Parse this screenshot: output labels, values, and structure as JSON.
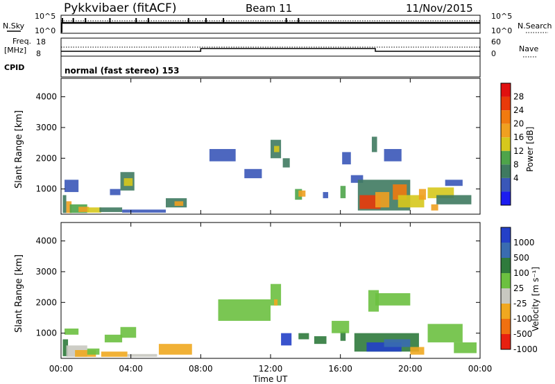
{
  "header": {
    "station": "Pykkvibaer (fitACF)",
    "beam": "Beam 11",
    "date": "11/Nov/2015"
  },
  "noise_panel": {
    "left_label": "N.Sky",
    "right_label": "N.Search",
    "left_ticks": [
      "10^5",
      "10^0"
    ],
    "right_ticks": [
      "10^5",
      "10^0"
    ]
  },
  "freq_panel": {
    "left_label_1": "Freq.",
    "left_label_2": "[MHz]",
    "left_ticks": [
      "18",
      "8"
    ],
    "right_label": "Nave",
    "right_ticks": [
      "60",
      "0"
    ]
  },
  "cpid": {
    "label": "CPID",
    "text": "normal (fast stereo) 153"
  },
  "axes": {
    "x_label": "Time UT",
    "x_ticks": [
      "00:00",
      "04:00",
      "08:00",
      "12:00",
      "16:00",
      "20:00",
      "00:00"
    ],
    "y_label": "Slant Range [km]",
    "y_ticks": [
      "1000",
      "2000",
      "3000",
      "4000"
    ]
  },
  "power_scale": {
    "label": "Power [dB]",
    "ticks": [
      "4",
      "8",
      "12",
      "16",
      "20",
      "24",
      "28"
    ],
    "colors": [
      "#1c1cf0",
      "#3a57b8",
      "#3f7a60",
      "#4ea44a",
      "#d6c81c",
      "#f0a020",
      "#f07a10",
      "#e83a0a",
      "#e01010"
    ]
  },
  "velocity_scale": {
    "label": "Velocity [m s⁻¹]",
    "ticks": [
      "1000",
      "500",
      "100",
      "25",
      "-25",
      "-100",
      "-500",
      "-1000"
    ],
    "colors": [
      "#2440c8",
      "#3a6cb0",
      "#2f7a3c",
      "#6cc040",
      "#c8c8c0",
      "#f0a820",
      "#f07010",
      "#e82010"
    ]
  },
  "chart_data": [
    {
      "type": "heatmap",
      "quantity": "Power",
      "x": [
        0,
        24
      ],
      "ylim": [
        180,
        4600
      ],
      "cells": [
        [
          0.1,
          0.3,
          220,
          800,
          8
        ],
        [
          0.3,
          0.6,
          220,
          600,
          20
        ],
        [
          0.5,
          1.5,
          220,
          500,
          12
        ],
        [
          1.0,
          1.6,
          250,
          420,
          22
        ],
        [
          1.5,
          2.3,
          230,
          400,
          16
        ],
        [
          2.2,
          3.5,
          250,
          400,
          8
        ],
        [
          3.5,
          6.0,
          230,
          330,
          4
        ],
        [
          6.0,
          7.2,
          400,
          700,
          8
        ],
        [
          6.5,
          7.0,
          450,
          600,
          20
        ],
        [
          3.4,
          4.2,
          950,
          1550,
          8
        ],
        [
          3.6,
          4.1,
          1100,
          1350,
          16
        ],
        [
          0.2,
          1.0,
          900,
          1300,
          4
        ],
        [
          2.8,
          3.4,
          800,
          1000,
          4
        ],
        [
          8.5,
          10.0,
          1900,
          2300,
          4
        ],
        [
          10.5,
          11.5,
          1350,
          1650,
          4
        ],
        [
          12.0,
          12.6,
          2000,
          2600,
          8
        ],
        [
          12.2,
          12.5,
          2200,
          2400,
          16
        ],
        [
          12.7,
          13.1,
          1700,
          2000,
          8
        ],
        [
          13.4,
          13.8,
          650,
          1000,
          12
        ],
        [
          13.6,
          14.0,
          750,
          950,
          20
        ],
        [
          15.0,
          15.3,
          700,
          900,
          4
        ],
        [
          16.0,
          16.3,
          700,
          1100,
          12
        ],
        [
          16.6,
          17.3,
          1200,
          1450,
          4
        ],
        [
          17.0,
          20.0,
          300,
          1300,
          8
        ],
        [
          17.1,
          18.3,
          350,
          800,
          28
        ],
        [
          18.0,
          18.8,
          400,
          900,
          20
        ],
        [
          19.0,
          19.8,
          650,
          1150,
          24
        ],
        [
          19.3,
          20.8,
          400,
          800,
          16
        ],
        [
          20.5,
          20.9,
          650,
          1000,
          20
        ],
        [
          21.0,
          22.5,
          700,
          1050,
          16
        ],
        [
          21.5,
          23.5,
          500,
          800,
          8
        ],
        [
          22.0,
          23.0,
          1100,
          1300,
          4
        ],
        [
          21.2,
          21.6,
          300,
          500,
          20
        ],
        [
          17.8,
          18.1,
          2200,
          2700,
          8
        ],
        [
          18.5,
          19.5,
          1900,
          2300,
          4
        ],
        [
          16.1,
          16.6,
          1800,
          2200,
          4
        ]
      ]
    },
    {
      "type": "heatmap",
      "quantity": "Velocity",
      "x": [
        0,
        24
      ],
      "ylim": [
        180,
        4600
      ],
      "cells": [
        [
          0.1,
          0.4,
          250,
          800,
          100
        ],
        [
          0.3,
          1.5,
          230,
          600,
          -25
        ],
        [
          0.8,
          2.0,
          230,
          450,
          -100
        ],
        [
          1.5,
          2.2,
          300,
          500,
          25
        ],
        [
          2.3,
          3.8,
          230,
          400,
          -100
        ],
        [
          3.8,
          5.5,
          230,
          320,
          -25
        ],
        [
          5.6,
          7.5,
          300,
          650,
          -100
        ],
        [
          3.4,
          4.3,
          850,
          1200,
          25
        ],
        [
          2.5,
          3.5,
          700,
          950,
          25
        ],
        [
          0.2,
          1.0,
          950,
          1150,
          25
        ],
        [
          9.0,
          12.0,
          1400,
          2100,
          25
        ],
        [
          12.0,
          12.6,
          1900,
          2600,
          25
        ],
        [
          12.2,
          12.4,
          1900,
          2100,
          -100
        ],
        [
          12.6,
          13.2,
          600,
          1000,
          1000
        ],
        [
          13.6,
          14.2,
          800,
          1000,
          100
        ],
        [
          14.5,
          15.2,
          650,
          900,
          100
        ],
        [
          16.0,
          16.3,
          750,
          1050,
          100
        ],
        [
          15.5,
          16.5,
          1000,
          1400,
          25
        ],
        [
          16.8,
          20.5,
          400,
          1000,
          100
        ],
        [
          17.5,
          19.5,
          400,
          700,
          1000
        ],
        [
          18.5,
          20.0,
          550,
          800,
          500
        ],
        [
          20.0,
          20.8,
          300,
          550,
          -100
        ],
        [
          17.6,
          18.2,
          1700,
          2400,
          25
        ],
        [
          18.0,
          20.0,
          1900,
          2300,
          25
        ],
        [
          21.0,
          23.0,
          700,
          1300,
          25
        ],
        [
          22.5,
          23.8,
          350,
          700,
          25
        ]
      ]
    }
  ]
}
